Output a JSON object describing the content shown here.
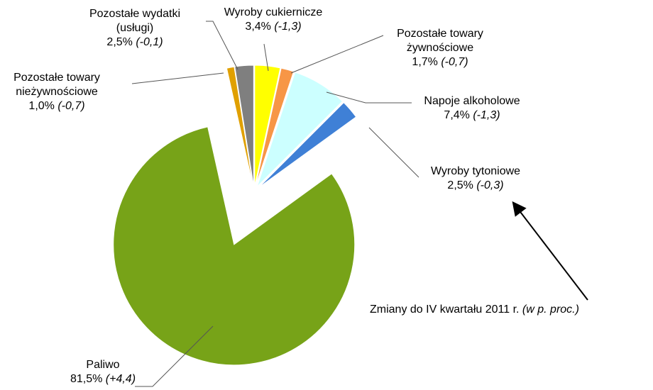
{
  "chart_data": {
    "type": "pie",
    "categories": [
      "Wyroby cukiernicze",
      "Pozostałe towary\nżywnościowe",
      "Napoje alkoholowe",
      "Wyroby tytoniowe",
      "Paliwo",
      "Pozostałe towary\nnieżywnościowe",
      "Pozostałe wydatki\n(usługi)"
    ],
    "values": [
      3.4,
      1.7,
      7.4,
      2.5,
      81.5,
      1.0,
      2.5
    ],
    "value_labels": [
      "3,4%",
      "1,7%",
      "7,4%",
      "2,5%",
      "81,5%",
      "1,0%",
      "2,5%"
    ],
    "change_labels": [
      "(-1,3)",
      "(-0,7)",
      "(-1,3)",
      "(-0,3)",
      "(+4,4)",
      "(-0,7)",
      "(-0,1)"
    ],
    "colors": [
      "#ffff00",
      "#f79646",
      "#ccffff",
      "#3f80d6",
      "#77a318",
      "#e0a000",
      "#7f7f7f"
    ],
    "annotation": "Zmiany do IV kwartału 2011 r.",
    "annotation_unit": "(w p. proc.)"
  }
}
